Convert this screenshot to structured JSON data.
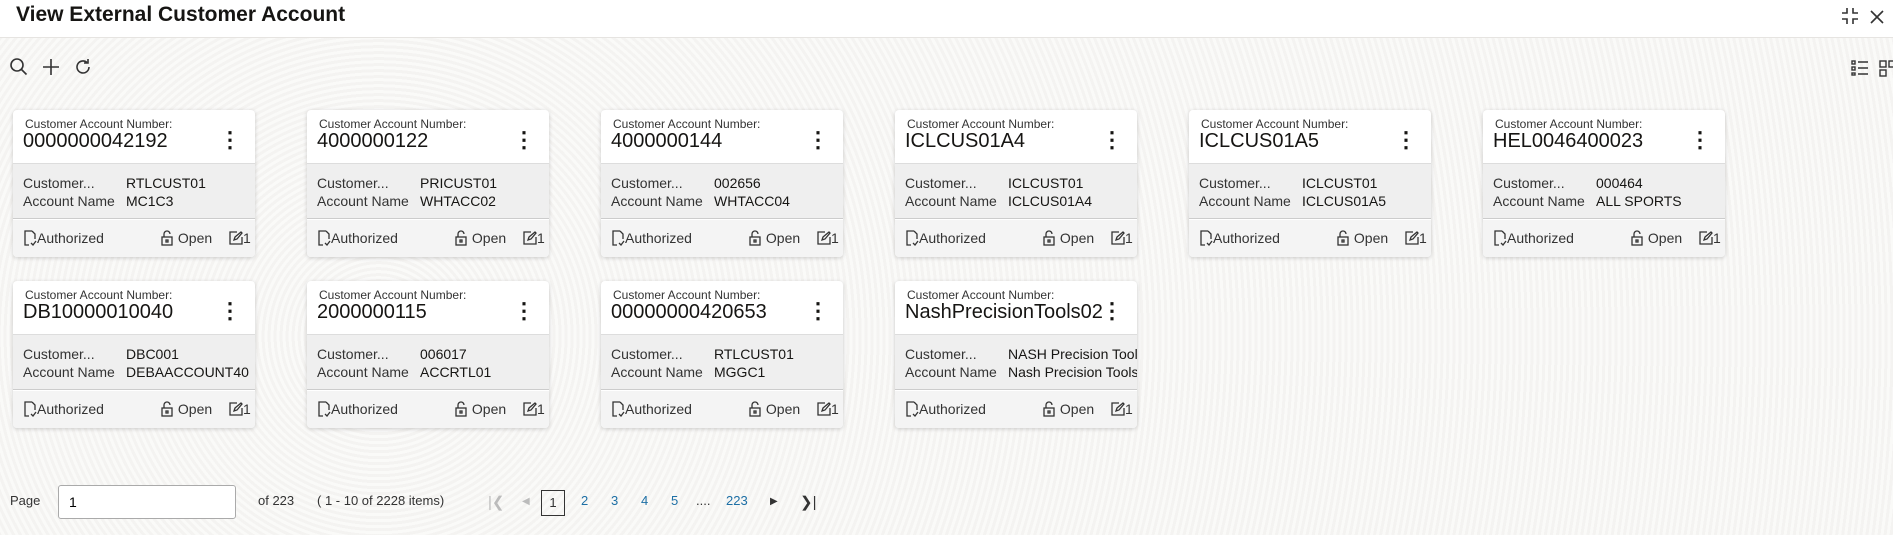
{
  "header": {
    "title": "View External Customer Account",
    "collapse_icon": "collapse-icon",
    "close_icon": "close-icon"
  },
  "toolbar": {
    "icons": [
      "search-icon",
      "add-icon",
      "refresh-icon"
    ],
    "view_icons": [
      "list-view-icon",
      "tile-view-icon"
    ]
  },
  "card_label": "Customer Account Number:",
  "field_labels": {
    "customer": "Customer...",
    "account_name": "Account Name"
  },
  "footer_labels": {
    "auth": "Authorized",
    "status": "Open",
    "mod": "1"
  },
  "cards": [
    {
      "number": "0000000042192",
      "customer": "RTLCUST01",
      "account_name": "MC1C3"
    },
    {
      "number": "4000000122",
      "customer": "PRICUST01",
      "account_name": "WHTACC02"
    },
    {
      "number": "4000000144",
      "customer": "002656",
      "account_name": "WHTACC04"
    },
    {
      "number": "ICLCUS01A4",
      "customer": "ICLCUST01",
      "account_name": "ICLCUS01A4"
    },
    {
      "number": "ICLCUS01A5",
      "customer": "ICLCUST01",
      "account_name": "ICLCUS01A5"
    },
    {
      "number": "HEL0046400023",
      "customer": "000464",
      "account_name": "ALL SPORTS"
    },
    {
      "number": "DB10000010040",
      "customer": "DBC001",
      "account_name": "DEBAACCOUNT40"
    },
    {
      "number": "2000000115",
      "customer": "006017",
      "account_name": "ACCRTL01"
    },
    {
      "number": "00000000420653",
      "customer": "RTLCUST01",
      "account_name": "MGGC1"
    },
    {
      "number": "NashPrecisionTools02",
      "customer": "NASH Precision Tools",
      "account_name": "Nash Precision Tools"
    }
  ],
  "pagination": {
    "page_label": "Page",
    "page_value": "1",
    "of_total": "of 223",
    "items": "( 1 - 10 of 2228 items)",
    "current": "1",
    "pages": [
      "2",
      "3",
      "4",
      "5"
    ],
    "ellipsis": "....",
    "last": "223"
  }
}
